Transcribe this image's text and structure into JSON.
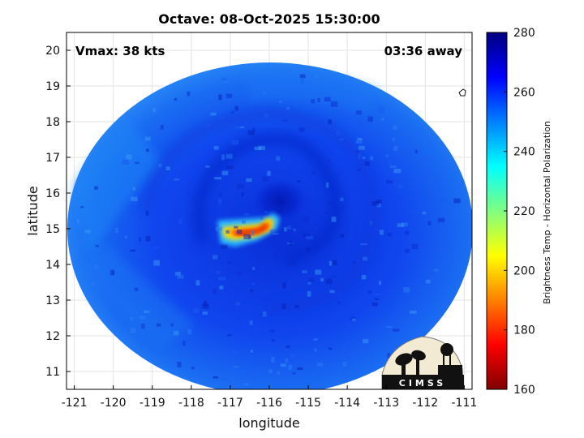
{
  "title": "Octave: 08-Oct-2025 15:30:00",
  "vmax_text": "Vmax: 38 kts",
  "time_away_text": "03:36 away",
  "logo_text": "CIMSS",
  "colormap": [
    "#800000",
    "#ff0000",
    "#ff8000",
    "#ffff00",
    "#80ff80",
    "#00ffff",
    "#0080ff",
    "#0000ff",
    "#000080"
  ],
  "chart_data": {
    "type": "heatmap",
    "title": "Octave: 08-Oct-2025 15:30:00",
    "xlabel": "longitude",
    "ylabel": "latitude",
    "xlim": [
      -121.2,
      -110.8
    ],
    "ylim": [
      10.5,
      20.5
    ],
    "xticks": [
      -121,
      -120,
      -119,
      -118,
      -117,
      -116,
      -115,
      -114,
      -113,
      -112,
      -111
    ],
    "yticks": [
      11,
      12,
      13,
      14,
      15,
      16,
      17,
      18,
      19,
      20
    ],
    "grid": true,
    "storm_center": {
      "lon": -116.0,
      "lat": 15.2
    },
    "coldest_band": {
      "lon_range": [
        -117.2,
        -115.8
      ],
      "lat_range": [
        14.7,
        15.4
      ],
      "min_temp": 175
    },
    "colorbar": {
      "label": "Brightness Temp - Horizontal Polarization",
      "range": [
        160,
        280
      ],
      "ticks": [
        160,
        180,
        200,
        220,
        240,
        260,
        280
      ]
    }
  }
}
